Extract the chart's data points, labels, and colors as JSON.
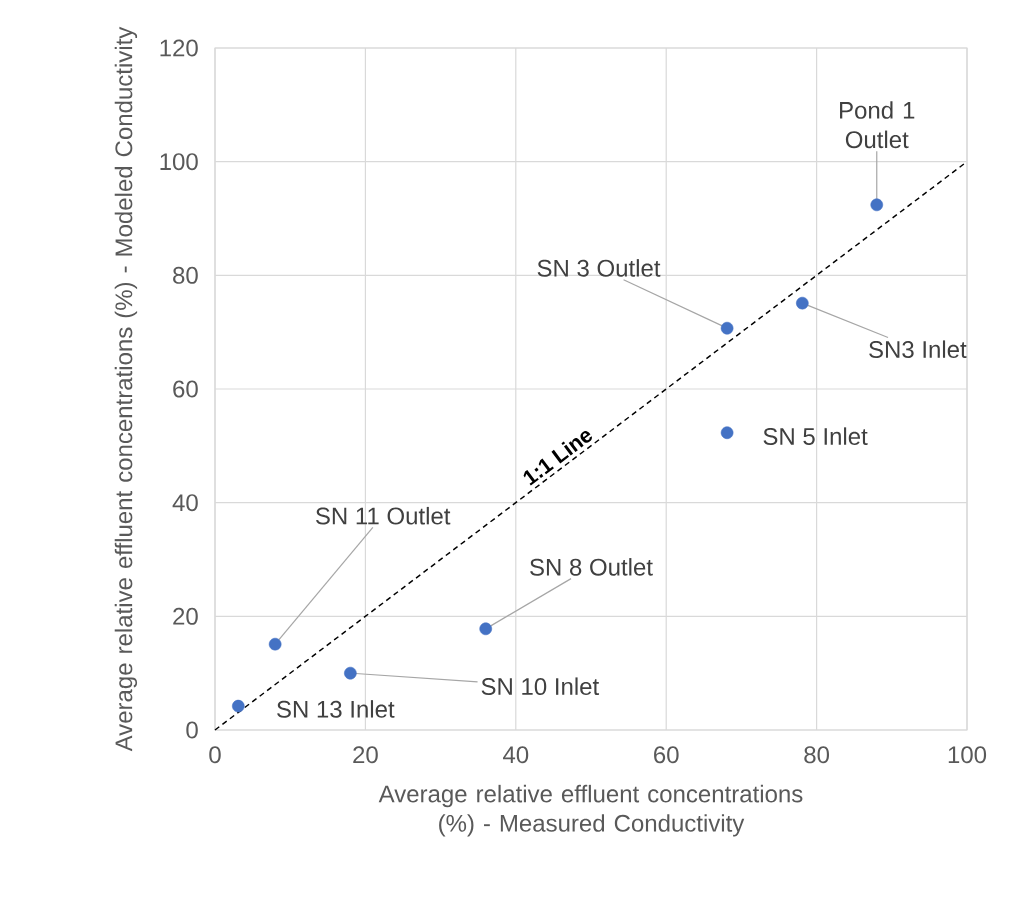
{
  "chart_data": {
    "type": "scatter",
    "xlabel": "Average relative effluent concentrations (%) - Measured Conductivity",
    "ylabel": "Average relative effluent concentrations (%) - Modeled Conductivity",
    "xlim": [
      0,
      100
    ],
    "ylim": [
      0,
      120
    ],
    "xticks": [
      0,
      20,
      40,
      60,
      80,
      100
    ],
    "yticks": [
      0,
      20,
      40,
      60,
      80,
      100,
      120
    ],
    "grid": true,
    "series": [
      {
        "color": "#4472c4",
        "marker": "circle",
        "x": [
          88,
          68.1,
          78.1,
          68.1,
          36,
          8,
          18,
          3.1
        ],
        "values": [
          92.4,
          70.7,
          75.1,
          52.3,
          17.8,
          15.1,
          10,
          4.2
        ]
      },
      {
        "type": "line",
        "name": "1:1 Line",
        "color": "#000000",
        "marker": "none",
        "line_style": "dashed",
        "x": [
          0,
          100
        ],
        "values": [
          0,
          100
        ]
      }
    ],
    "annotations": [
      {
        "text": "Pond 1 Outlet",
        "x": 88,
        "y": 92.4
      },
      {
        "text": "SN 3 Outlet",
        "x": 68.1,
        "y": 70.7
      },
      {
        "text": "SN3 Inlet",
        "x": 78.1,
        "y": 75.1
      },
      {
        "text": "SN 5 Inlet",
        "x": 68.1,
        "y": 52.3
      },
      {
        "text": "SN 8 Outlet",
        "x": 36,
        "y": 17.8
      },
      {
        "text": "SN 11 Outlet",
        "x": 8,
        "y": 15.1
      },
      {
        "text": "SN 10 Inlet",
        "x": 18,
        "y": 10
      },
      {
        "text": "SN 13 Inlet",
        "x": 3.1,
        "y": 4.2
      }
    ]
  }
}
